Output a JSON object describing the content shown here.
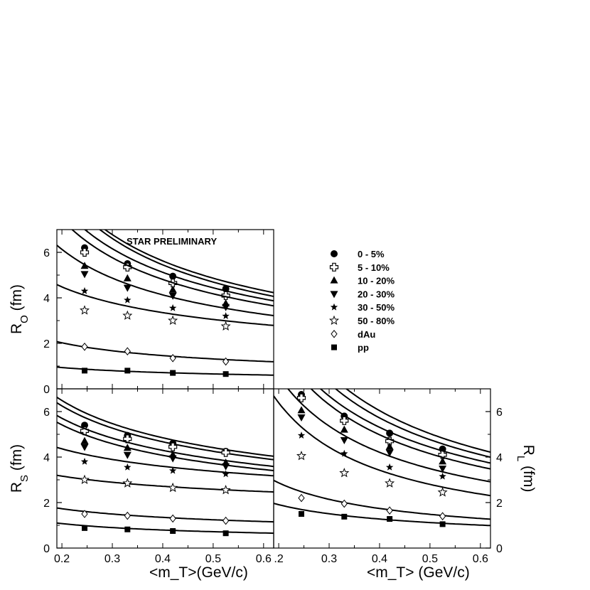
{
  "chart_data": {
    "type": "scatter",
    "annotation": "STAR PRELIMINARY",
    "x_values": [
      0.245,
      0.33,
      0.42,
      0.525
    ],
    "xlim": [
      0.19,
      0.62
    ],
    "ylim": [
      0,
      7
    ],
    "x_ticks": [
      {
        "value": 0.2,
        "label": "0.2"
      },
      {
        "value": 0.3,
        "label": "0.3"
      },
      {
        "value": 0.4,
        "label": "0.4"
      },
      {
        "value": 0.5,
        "label": "0.5"
      },
      {
        "value": 0.6,
        "label": "0.6"
      }
    ],
    "x_ticks_right": [
      {
        "value": 0.2,
        "label": ".2"
      },
      {
        "value": 0.3,
        "label": "0.3"
      },
      {
        "value": 0.4,
        "label": "0.4"
      },
      {
        "value": 0.5,
        "label": "0.5"
      },
      {
        "value": 0.6,
        "label": "0.6"
      }
    ],
    "y_ticks": [
      0,
      2,
      4,
      6
    ],
    "xlabel": "<m_T>(GeV/c)",
    "xlabel_right": "<m_T> (GeV/c)",
    "legend": [
      {
        "label": "0 - 5%",
        "marker": "circle-filled"
      },
      {
        "label": "5 - 10%",
        "marker": "cross-open"
      },
      {
        "label": "10 - 20%",
        "marker": "triangle-up-filled"
      },
      {
        "label": "20 - 30%",
        "marker": "triangle-down-filled"
      },
      {
        "label": "30 - 50%",
        "marker": "star-filled"
      },
      {
        "label": "50 - 80%",
        "marker": "star-open"
      },
      {
        "label": "dAu",
        "marker": "diamond-open"
      },
      {
        "label": "pp",
        "marker": "square-filled"
      }
    ],
    "panels": [
      {
        "id": "Ro",
        "ylabel_main": "R",
        "ylabel_sub": "O",
        "ylabel_unit": " (fm)",
        "series": [
          {
            "marker": "circle-filled",
            "values": [
              6.2,
              5.5,
              4.95,
              4.4
            ],
            "fit_amp": 3.1,
            "fit_exp": 0.65
          },
          {
            "marker": "cross-open",
            "values": [
              6.0,
              5.35,
              4.65,
              4.1
            ],
            "fit_amp": 2.95,
            "fit_exp": 0.67
          },
          {
            "marker": "triangle-up-filled",
            "values": [
              5.4,
              4.85,
              4.35,
              3.75
            ],
            "fit_amp": 2.85,
            "fit_exp": 0.64
          },
          {
            "marker": "triangle-down-filled",
            "values": [
              5.05,
              4.45,
              4.1,
              3.6
            ],
            "fit_amp": 2.7,
            "fit_exp": 0.63
          },
          {
            "marker": "star-filled",
            "values": [
              4.3,
              3.9,
              3.55,
              3.2
            ],
            "fit_amp": 2.45,
            "fit_exp": 0.57
          },
          {
            "marker": "star-open",
            "values": [
              3.45,
              3.22,
              3.0,
              2.75
            ],
            "fit_amp": 2.28,
            "fit_exp": 0.42
          },
          {
            "marker": "diamond-open",
            "values": [
              1.85,
              1.65,
              1.35,
              1.2
            ],
            "fit_amp": 0.95,
            "fit_exp": 0.47
          },
          {
            "marker": "square-filled",
            "values": [
              0.8,
              0.8,
              0.7,
              0.65
            ],
            "fit_amp": 0.5,
            "fit_exp": 0.39
          }
        ]
      },
      {
        "id": "Rs",
        "ylabel_main": "R",
        "ylabel_sub": "S",
        "ylabel_unit": " (fm)",
        "series": [
          {
            "marker": "circle-filled",
            "values": [
              5.4,
              4.95,
              4.6,
              4.25
            ],
            "fit_amp": 3.3,
            "fit_exp": 0.42
          },
          {
            "marker": "cross-open",
            "values": [
              5.15,
              4.8,
              4.45,
              4.2
            ],
            "fit_amp": 3.18,
            "fit_exp": 0.42
          },
          {
            "marker": "triangle-up-filled",
            "values": [
              4.7,
              4.4,
              4.1,
              3.75
            ],
            "fit_amp": 2.95,
            "fit_exp": 0.41
          },
          {
            "marker": "triangle-down-filled",
            "values": [
              4.45,
              4.1,
              3.95,
              3.6
            ],
            "fit_amp": 2.8,
            "fit_exp": 0.41
          },
          {
            "marker": "star-filled",
            "values": [
              3.8,
              3.55,
              3.4,
              3.25
            ],
            "fit_amp": 2.78,
            "fit_exp": 0.28
          },
          {
            "marker": "star-open",
            "values": [
              3.0,
              2.85,
              2.65,
              2.55
            ],
            "fit_amp": 2.22,
            "fit_exp": 0.22
          },
          {
            "marker": "diamond-open",
            "values": [
              1.5,
              1.42,
              1.3,
              1.2
            ],
            "fit_amp": 0.97,
            "fit_exp": 0.36
          },
          {
            "marker": "square-filled",
            "values": [
              0.88,
              0.82,
              0.75,
              0.65
            ],
            "fit_amp": 0.53,
            "fit_exp": 0.44
          }
        ]
      },
      {
        "id": "Rl",
        "ylabel_main": "R",
        "ylabel_sub": "L",
        "ylabel_unit": " (fm)",
        "series": [
          {
            "marker": "circle-filled",
            "values": [
              6.75,
              5.8,
              5.05,
              4.35
            ],
            "fit_amp": 2.85,
            "fit_exp": 0.82
          },
          {
            "marker": "cross-open",
            "values": [
              6.6,
              5.6,
              4.7,
              4.1
            ],
            "fit_amp": 2.7,
            "fit_exp": 0.82
          },
          {
            "marker": "triangle-up-filled",
            "values": [
              6.05,
              5.2,
              4.45,
              3.8
            ],
            "fit_amp": 2.55,
            "fit_exp": 0.8
          },
          {
            "marker": "triangle-down-filled",
            "values": [
              5.75,
              4.75,
              4.2,
              3.5
            ],
            "fit_amp": 2.35,
            "fit_exp": 0.82
          },
          {
            "marker": "star-filled",
            "values": [
              4.95,
              4.15,
              3.55,
              3.15
            ],
            "fit_amp": 1.95,
            "fit_exp": 0.84
          },
          {
            "marker": "star-open",
            "values": [
              4.05,
              3.3,
              2.85,
              2.45
            ],
            "fit_amp": 1.5,
            "fit_exp": 0.9
          },
          {
            "marker": "diamond-open",
            "values": [
              2.2,
              1.95,
              1.65,
              1.4
            ],
            "fit_amp": 0.9,
            "fit_exp": 0.72
          },
          {
            "marker": "square-filled",
            "values": [
              1.5,
              1.38,
              1.28,
              1.05
            ],
            "fit_amp": 0.75,
            "fit_exp": 0.58
          }
        ]
      }
    ]
  }
}
